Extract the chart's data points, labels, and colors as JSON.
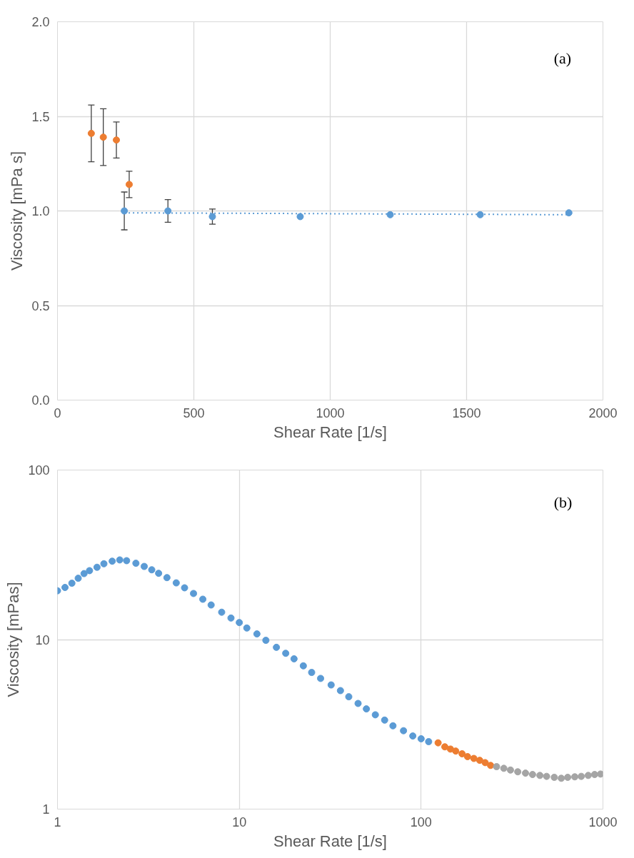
{
  "chart_data": [
    {
      "type": "scatter",
      "xlabel": "Shear Rate [1/s]",
      "ylabel": "Viscosity [mPa s]",
      "annotations": [
        "(a)"
      ],
      "xlim": [
        0,
        2000
      ],
      "ylim": [
        0,
        2.0
      ],
      "xticks": [
        0,
        500,
        1000,
        1500,
        2000
      ],
      "yticks": [
        {
          "value": 0,
          "label": "0.0"
        },
        {
          "value": 0.5,
          "label": "0.5"
        },
        {
          "value": 1,
          "label": "1.0"
        },
        {
          "value": 1.5,
          "label": "1.5"
        },
        {
          "value": 2,
          "label": "2.0"
        }
      ],
      "grid": true,
      "marker": "circle",
      "series": [
        {
          "color": "#ed7d31",
          "x": [
            124,
            168,
            216,
            263
          ],
          "values": [
            1.41,
            1.39,
            1.375,
            1.14
          ],
          "errors": [
            0.15,
            0.15,
            0.095,
            0.07
          ]
        },
        {
          "color": "#5b9bd5",
          "x": [
            245,
            405,
            568,
            890,
            1220,
            1550,
            1875
          ],
          "values": [
            1.0,
            1.0,
            0.97,
            0.97,
            0.98,
            0.98,
            0.99
          ],
          "errors": [
            0.1,
            0.06,
            0.04,
            null,
            null,
            null,
            null
          ]
        },
        {
          "type": "line",
          "line_style": "dotted",
          "marker": "none",
          "color": "#5b9bd5",
          "x": [
            245,
            1875
          ],
          "values": [
            0.99,
            0.98
          ]
        }
      ]
    },
    {
      "type": "scatter",
      "xlabel": "Shear Rate [1/s]",
      "ylabel": "Viscosity [mPas]",
      "annotations": [
        "(b)"
      ],
      "log": "xy",
      "xlim": [
        1,
        1000
      ],
      "ylim": [
        1,
        100
      ],
      "xticks": [
        1,
        10,
        100,
        1000
      ],
      "yticks": [
        1,
        10,
        100
      ],
      "grid": true,
      "marker": "circle",
      "series": [
        {
          "color": "#5b9bd5",
          "x": [
            1,
            1.1,
            1.2,
            1.3,
            1.4,
            1.5,
            1.65,
            1.8,
            2,
            2.2,
            2.4,
            2.7,
            3,
            3.3,
            3.6,
            4,
            4.5,
            5,
            5.6,
            6.3,
            7,
            8,
            9,
            10,
            11,
            12.5,
            14,
            16,
            18,
            20,
            22.5,
            25,
            28,
            32,
            36,
            40,
            45,
            50,
            56,
            63,
            70,
            80,
            90,
            100,
            110
          ],
          "values": [
            19.4,
            20.3,
            21.5,
            23,
            24.5,
            25.5,
            26.7,
            28,
            29,
            29.5,
            29.2,
            28.2,
            27,
            25.8,
            24.6,
            23.2,
            21.6,
            20.2,
            18.7,
            17.3,
            16,
            14.5,
            13.4,
            12.6,
            11.7,
            10.8,
            9.9,
            9.0,
            8.3,
            7.7,
            7.0,
            6.4,
            5.9,
            5.4,
            5.0,
            4.6,
            4.2,
            3.9,
            3.6,
            3.35,
            3.1,
            2.9,
            2.7,
            2.6,
            2.5
          ]
        },
        {
          "color": "#ed7d31",
          "x": [
            124,
            135,
            145,
            155,
            168,
            180,
            195,
            210,
            225,
            241
          ],
          "values": [
            2.46,
            2.33,
            2.26,
            2.2,
            2.12,
            2.04,
            1.99,
            1.94,
            1.88,
            1.81
          ]
        },
        {
          "color": "#a5a5a5",
          "x": [
            260,
            285,
            310,
            340,
            375,
            410,
            450,
            490,
            540,
            590,
            640,
            700,
            760,
            830,
            900,
            970
          ],
          "values": [
            1.78,
            1.74,
            1.7,
            1.66,
            1.63,
            1.6,
            1.58,
            1.56,
            1.54,
            1.52,
            1.54,
            1.55,
            1.56,
            1.58,
            1.6,
            1.61
          ]
        }
      ]
    }
  ]
}
